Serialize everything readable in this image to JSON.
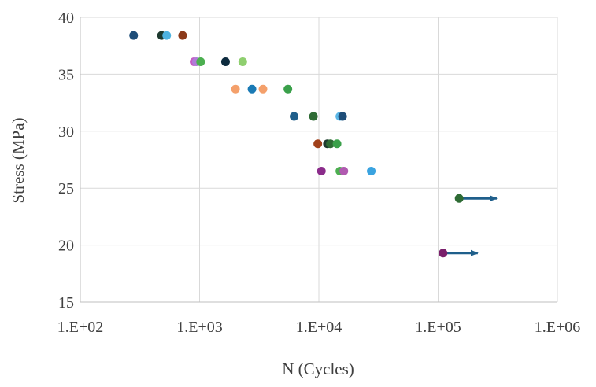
{
  "chart_data": {
    "type": "scatter",
    "title": "",
    "xlabel": "N (Cycles)",
    "ylabel": "Stress (MPa)",
    "x_scale": "log",
    "xlim": [
      100,
      1000000
    ],
    "ylim": [
      15,
      40
    ],
    "grid": true,
    "legend": "none",
    "x_ticks": [
      {
        "value": 100,
        "label": "1.E+02"
      },
      {
        "value": 1000,
        "label": "1.E+03"
      },
      {
        "value": 10000,
        "label": "1.E+04"
      },
      {
        "value": 100000,
        "label": "1.E+05"
      },
      {
        "value": 1000000,
        "label": "1.E+06"
      }
    ],
    "y_ticks": [
      {
        "value": 15,
        "label": "15"
      },
      {
        "value": 20,
        "label": "20"
      },
      {
        "value": 25,
        "label": "25"
      },
      {
        "value": 30,
        "label": "30"
      },
      {
        "value": 35,
        "label": "35"
      },
      {
        "value": 40,
        "label": "40"
      }
    ],
    "points": [
      {
        "x": 280,
        "y": 38.4,
        "color": "#1f4e79"
      },
      {
        "x": 480,
        "y": 38.4,
        "color": "#1e3a2f"
      },
      {
        "x": 530,
        "y": 38.4,
        "color": "#4eb3e0"
      },
      {
        "x": 720,
        "y": 38.4,
        "color": "#8b3a1a"
      },
      {
        "x": 900,
        "y": 36.1,
        "color": "#c45cc4"
      },
      {
        "x": 940,
        "y": 36.1,
        "color": "#b07bd8"
      },
      {
        "x": 1020,
        "y": 36.1,
        "color": "#4caf50"
      },
      {
        "x": 1650,
        "y": 36.1,
        "color": "#0d2b3e"
      },
      {
        "x": 2300,
        "y": 36.1,
        "color": "#8fcf6f"
      },
      {
        "x": 2000,
        "y": 33.7,
        "color": "#f4a06b"
      },
      {
        "x": 2750,
        "y": 33.7,
        "color": "#1a7ab5"
      },
      {
        "x": 3400,
        "y": 33.7,
        "color": "#f4a06b"
      },
      {
        "x": 5500,
        "y": 33.7,
        "color": "#3aa04a"
      },
      {
        "x": 6200,
        "y": 31.3,
        "color": "#1f5f8b"
      },
      {
        "x": 9000,
        "y": 31.3,
        "color": "#2e6b34"
      },
      {
        "x": 15000,
        "y": 31.3,
        "color": "#5bb6e6"
      },
      {
        "x": 15800,
        "y": 31.3,
        "color": "#1f4e79"
      },
      {
        "x": 9800,
        "y": 28.9,
        "color": "#a0401a"
      },
      {
        "x": 11800,
        "y": 28.9,
        "color": "#1e3a2f"
      },
      {
        "x": 12500,
        "y": 28.9,
        "color": "#2e6b34"
      },
      {
        "x": 14200,
        "y": 28.9,
        "color": "#3aa04a"
      },
      {
        "x": 10500,
        "y": 26.5,
        "color": "#8b2c8b"
      },
      {
        "x": 15000,
        "y": 26.5,
        "color": "#4caf50"
      },
      {
        "x": 16200,
        "y": 26.5,
        "color": "#b05ab0"
      },
      {
        "x": 27500,
        "y": 26.5,
        "color": "#3aa3e0"
      },
      {
        "x": 150000,
        "y": 24.1,
        "color": "#2e6b34"
      },
      {
        "x": 110000,
        "y": 19.3,
        "color": "#7a1f6b"
      }
    ],
    "runouts": [
      {
        "x_start": 150000,
        "x_end": 310000,
        "y": 24.1,
        "color": "#1f5f8b"
      },
      {
        "x_start": 110000,
        "x_end": 215000,
        "y": 19.3,
        "color": "#1f5f8b"
      }
    ]
  }
}
